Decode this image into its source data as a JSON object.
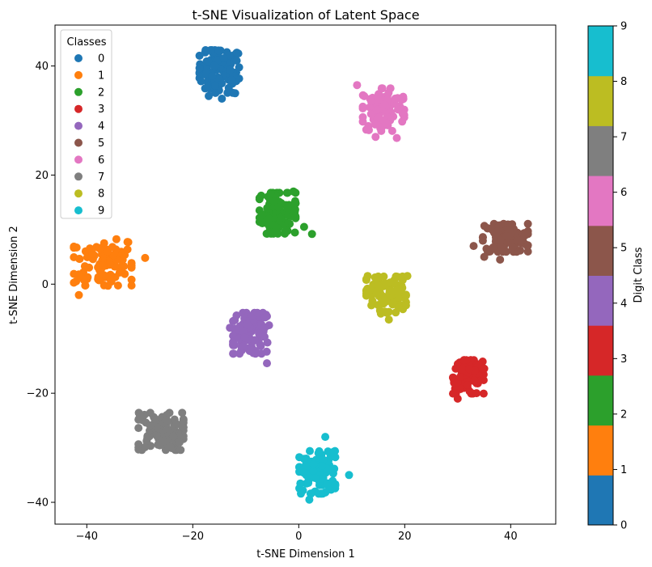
{
  "chart_data": {
    "type": "scatter",
    "title": "t-SNE Visualization of Latent Space",
    "xlabel": "t-SNE Dimension 1",
    "ylabel": "t-SNE Dimension 2",
    "xlim": [
      -46,
      48.5
    ],
    "ylim": [
      -44,
      47.5
    ],
    "xticks": [
      -40,
      -20,
      0,
      20,
      40
    ],
    "yticks": [
      -40,
      -20,
      0,
      20,
      40
    ],
    "grid": false,
    "legend": {
      "title": "Classes",
      "placement": "top-left",
      "entries": [
        "0",
        "1",
        "2",
        "3",
        "4",
        "5",
        "6",
        "7",
        "8",
        "9"
      ]
    },
    "colorbar": {
      "label": "Digit Class",
      "min": 0,
      "max": 9,
      "ticks": [
        "0",
        "1",
        "2",
        "3",
        "4",
        "5",
        "6",
        "7",
        "8",
        "9"
      ]
    },
    "class_colors": [
      "#1f77b4",
      "#ff7f0e",
      "#2ca02c",
      "#d62728",
      "#9467bd",
      "#8c564b",
      "#e377c2",
      "#7f7f7f",
      "#bcbd22",
      "#17becf"
    ],
    "series": [
      {
        "name": "0",
        "cluster_center": [
          -15,
          39
        ],
        "spread": [
          2.2,
          2.3
        ],
        "count": 100,
        "outliers": [
          [
            -17,
            34.5
          ],
          [
            -14.5,
            34
          ],
          [
            -12,
            35
          ]
        ]
      },
      {
        "name": "1",
        "cluster_center": [
          -37,
          4
        ],
        "spread": [
          3.2,
          2.5
        ],
        "count": 100,
        "outliers": [
          [
            -29,
            4.8
          ],
          [
            -36,
            -0.3
          ],
          [
            -41.5,
            -2
          ]
        ]
      },
      {
        "name": "2",
        "cluster_center": [
          -4,
          13
        ],
        "spread": [
          2.0,
          2.2
        ],
        "count": 100,
        "outliers": [
          [
            2.5,
            9.2
          ],
          [
            1,
            10.5
          ],
          [
            -1,
            17
          ]
        ]
      },
      {
        "name": "3",
        "cluster_center": [
          32,
          -17
        ],
        "spread": [
          1.7,
          1.8
        ],
        "count": 100,
        "outliers": [
          [
            35,
            -15.5
          ],
          [
            30,
            -21
          ]
        ]
      },
      {
        "name": "4",
        "cluster_center": [
          -9,
          -9
        ],
        "spread": [
          2.0,
          2.2
        ],
        "count": 100,
        "outliers": [
          [
            -6,
            -14.5
          ],
          [
            -13,
            -8
          ]
        ]
      },
      {
        "name": "5",
        "cluster_center": [
          39,
          8.5
        ],
        "spread": [
          2.5,
          1.5
        ],
        "count": 100,
        "outliers": [
          [
            35,
            5
          ],
          [
            38,
            4.5
          ],
          [
            33,
            7
          ]
        ]
      },
      {
        "name": "6",
        "cluster_center": [
          16,
          32
        ],
        "spread": [
          2.3,
          2.3
        ],
        "count": 100,
        "outliers": [
          [
            18.5,
            26.8
          ],
          [
            14.5,
            27
          ],
          [
            11,
            36.5
          ]
        ]
      },
      {
        "name": "7",
        "cluster_center": [
          -26,
          -27
        ],
        "spread": [
          2.5,
          2.0
        ],
        "count": 100,
        "outliers": [
          [
            -30,
            -24
          ],
          [
            -22.5,
            -29
          ]
        ]
      },
      {
        "name": "8",
        "cluster_center": [
          16.5,
          -2
        ],
        "spread": [
          2.2,
          2.0
        ],
        "count": 100,
        "outliers": [
          [
            20.5,
            1.5
          ],
          [
            17,
            -6.5
          ],
          [
            13,
            1.5
          ]
        ]
      },
      {
        "name": "9",
        "cluster_center": [
          3.5,
          -34.5
        ],
        "spread": [
          2.0,
          2.3
        ],
        "count": 100,
        "outliers": [
          [
            9.5,
            -35
          ],
          [
            5,
            -28
          ],
          [
            2,
            -39.5
          ]
        ]
      }
    ]
  }
}
